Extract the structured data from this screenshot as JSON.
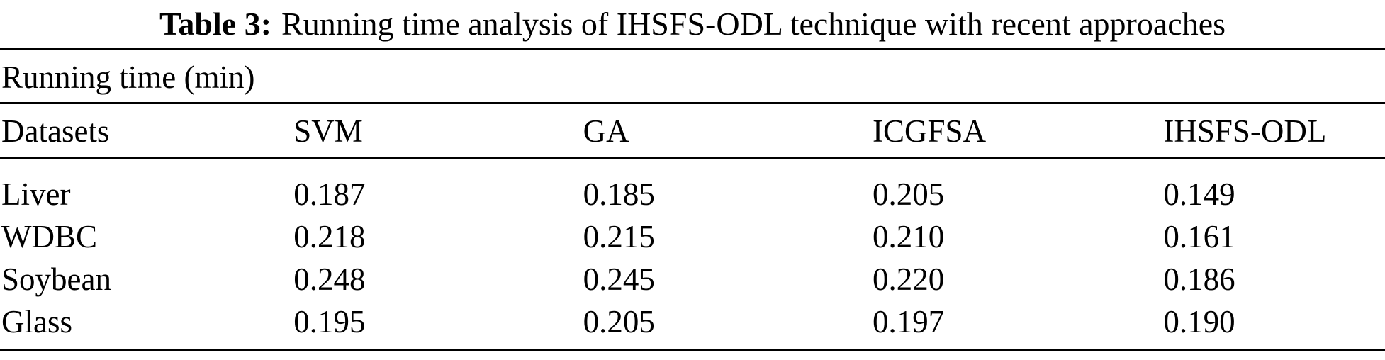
{
  "caption": {
    "label": "Table 3:",
    "text": "Running time analysis of IHSFS-ODL technique with recent approaches"
  },
  "table": {
    "span_header": "Running time (min)",
    "columns": [
      "Datasets",
      "SVM",
      "GA",
      "ICGFSA",
      "IHSFS-ODL"
    ],
    "rows": [
      {
        "dataset": "Liver",
        "values": [
          "0.187",
          "0.185",
          "0.205",
          "0.149"
        ]
      },
      {
        "dataset": "WDBC",
        "values": [
          "0.218",
          "0.215",
          "0.210",
          "0.161"
        ]
      },
      {
        "dataset": "Soybean",
        "values": [
          "0.248",
          "0.245",
          "0.220",
          "0.186"
        ]
      },
      {
        "dataset": "Glass",
        "values": [
          "0.195",
          "0.205",
          "0.197",
          "0.190"
        ]
      }
    ]
  },
  "colors": {
    "text": "#000000",
    "background": "#ffffff",
    "rule": "#000000"
  }
}
